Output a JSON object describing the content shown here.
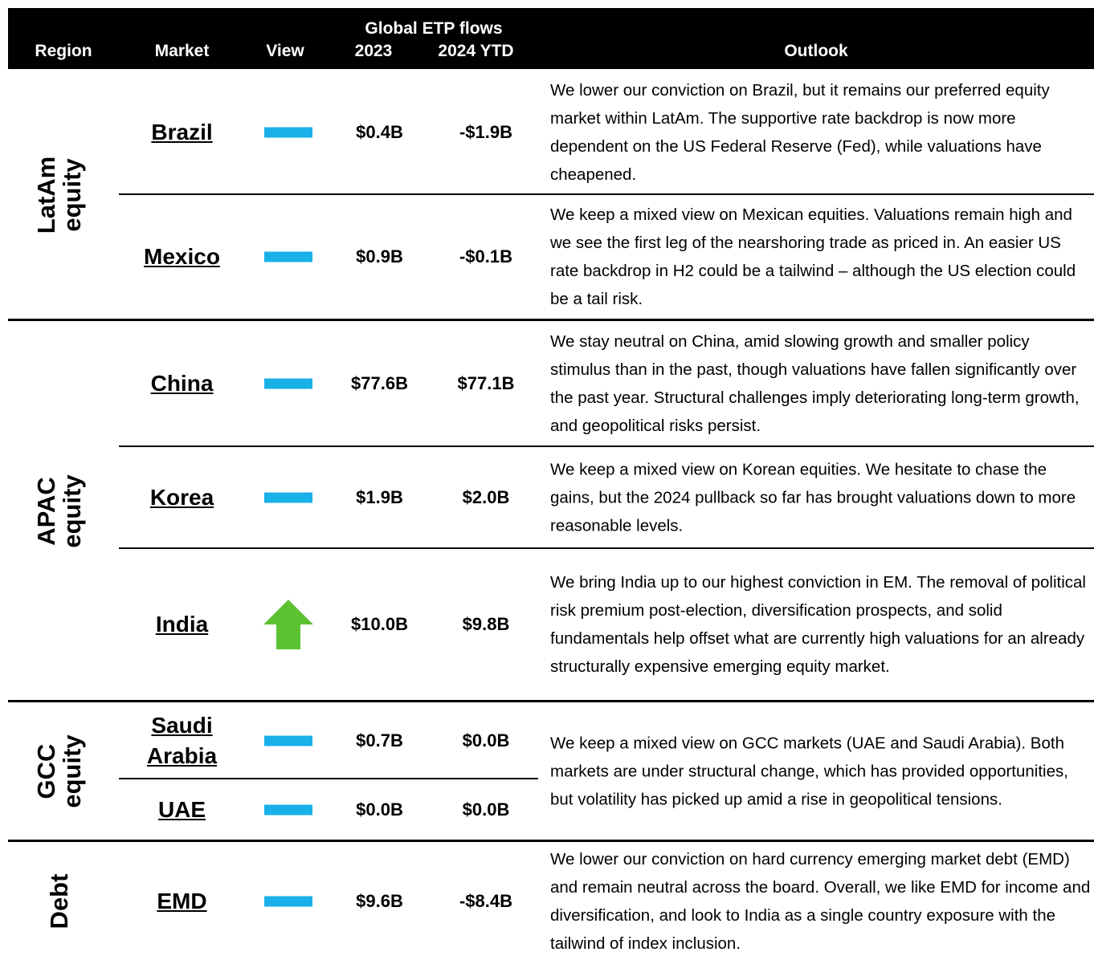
{
  "header": {
    "region": "Region",
    "market": "Market",
    "view": "View",
    "flows": "Global ETP flows",
    "y2023": "2023",
    "y2024": "2024 YTD",
    "outlook": "Outlook"
  },
  "regions": [
    {
      "name": [
        "LatAm",
        "equity"
      ],
      "markets": [
        {
          "name": "Brazil",
          "flows_2023": "$0.4B",
          "flows_2024": "-$1.9B",
          "outlook": "We lower our conviction on Brazil, but it remains our preferred equity market within LatAm. The supportive rate backdrop is now more dependent on the US Federal Reserve (Fed), while valuations have cheapened."
        },
        {
          "name": "Mexico",
          "flows_2023": "$0.9B",
          "flows_2024": "-$0.1B",
          "outlook": "We keep a mixed view on Mexican equities. Valuations remain high and we see the first leg of the nearshoring trade as priced in. An easier US rate backdrop in H2 could be a tailwind – although the US election could be a tail risk."
        }
      ]
    },
    {
      "name": [
        "APAC",
        "equity"
      ],
      "markets": [
        {
          "name": "China",
          "flows_2023": "$77.6B",
          "flows_2024": "$77.1B",
          "outlook": "We stay neutral on China, amid slowing growth and smaller policy stimulus than in the past, though valuations have fallen significantly over the past year. Structural challenges imply deteriorating long-term growth, and geopolitical risks persist."
        },
        {
          "name": "Korea",
          "flows_2023": "$1.9B",
          "flows_2024": "$2.0B",
          "outlook": "We keep a mixed view on Korean equities. We hesitate to chase the gains, but the 2024 pullback so far has brought valuations down to more reasonable levels."
        },
        {
          "name": "India",
          "flows_2023": "$10.0B",
          "flows_2024": "$9.8B",
          "outlook": "We bring India up to our highest conviction in EM. The removal of political risk premium post-election, diversification prospects, and solid fundamentals help offset what are currently high valuations for an already structurally expensive emerging equity market."
        }
      ]
    },
    {
      "name": [
        "GCC",
        "equity"
      ],
      "outlook": "We keep a mixed view on GCC markets (UAE and Saudi Arabia). Both markets are under structural change, which has provided opportunities, but volatility has picked up amid a rise in geopolitical tensions.",
      "markets": [
        {
          "name": "Saudi Arabia",
          "flows_2023": "$0.7B",
          "flows_2024": "$0.0B"
        },
        {
          "name": "UAE",
          "flows_2023": "$0.0B",
          "flows_2024": "$0.0B"
        }
      ]
    },
    {
      "name": [
        "Debt"
      ],
      "markets": [
        {
          "name": "EMD",
          "flows_2023": "$9.6B",
          "flows_2024": "-$8.4B",
          "outlook": "We lower our conviction on hard currency emerging market debt (EMD) and remain neutral across the board. Overall, we like EMD for income and diversification, and look to India as a single country exposure with the tailwind of index inclusion."
        }
      ]
    }
  ]
}
